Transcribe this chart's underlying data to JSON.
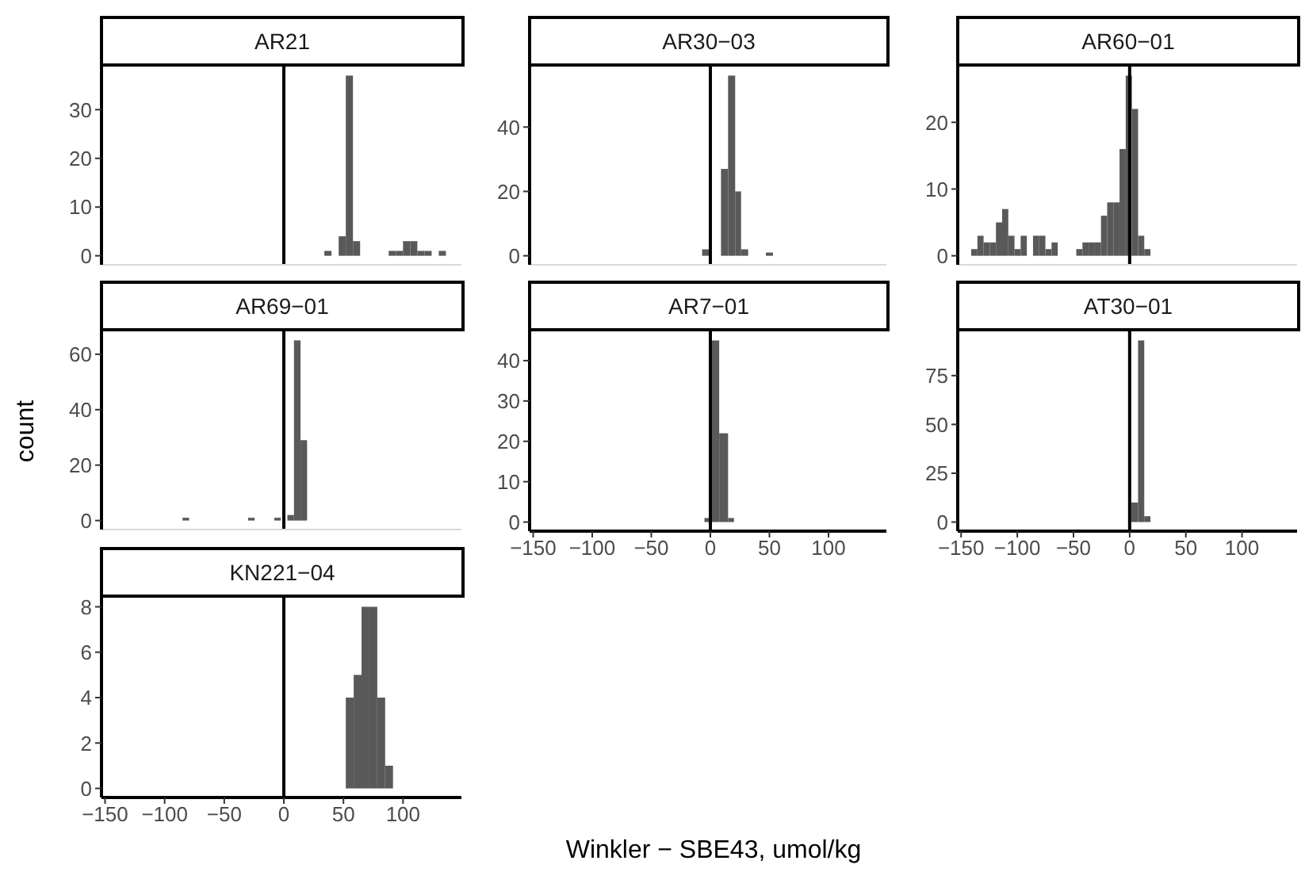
{
  "chart_data": [
    {
      "type": "histogram",
      "title": "AR21",
      "color": "#595959",
      "bins": [
        34,
        40,
        46,
        52,
        58,
        64,
        70,
        76,
        82,
        88,
        94,
        100,
        106,
        112,
        118,
        124,
        130,
        136
      ],
      "values": [
        1,
        0,
        4,
        37,
        3,
        0,
        0,
        0,
        0,
        1,
        1,
        3,
        3,
        1,
        1,
        0,
        1
      ],
      "xlim": [
        -153,
        149
      ],
      "ylim": [
        -1.85,
        38.85
      ],
      "yticks": [
        0,
        10,
        20,
        30
      ],
      "tick_labels": "y",
      "ref_lines": [
        {
          "axis": "x",
          "value": 0,
          "color": "#000000"
        }
      ]
    },
    {
      "type": "histogram",
      "title": "AR30−03",
      "color": "#595959",
      "bins": [
        -7,
        0,
        9,
        15,
        21,
        26,
        32,
        47,
        53
      ],
      "values": [
        2,
        0,
        27,
        56,
        20,
        2,
        0,
        1
      ],
      "xlim": [
        -153,
        149
      ],
      "ylim": [
        -2.8,
        58.8
      ],
      "yticks": [
        0,
        20,
        40
      ],
      "tick_labels": "y",
      "ref_lines": [
        {
          "axis": "x",
          "value": 0,
          "color": "#000000"
        }
      ]
    },
    {
      "type": "histogram",
      "title": "AR60−01",
      "color": "#595959",
      "bins": [
        -141,
        -135.5,
        -130,
        -124.5,
        -119,
        -113.5,
        -108,
        -102.5,
        -97,
        -91.5,
        -86,
        -80.5,
        -75,
        -69.5,
        -64,
        -58.5,
        -53,
        -47.5,
        -42,
        -36.5,
        -31,
        -25.5,
        -20,
        -14.5,
        -9,
        -3.5,
        2,
        7.5,
        13,
        18.5
      ],
      "values": [
        1,
        3,
        2,
        2,
        5,
        7,
        3,
        1,
        3,
        0,
        3,
        3,
        1,
        2,
        0,
        0,
        0,
        1,
        2,
        2,
        2,
        6,
        8,
        8,
        16,
        27,
        22,
        3,
        1
      ],
      "xlim": [
        -153,
        149
      ],
      "ylim": [
        -1.35,
        28.35
      ],
      "yticks": [
        0,
        10,
        20
      ],
      "tick_labels": "y",
      "ref_lines": [
        {
          "axis": "x",
          "value": 0,
          "color": "#000000"
        }
      ]
    },
    {
      "type": "histogram",
      "title": "AR69−01",
      "ylabel": "count",
      "color": "#595959",
      "bins": [
        -85,
        -79.5,
        -74,
        -68.5,
        -63,
        -57.5,
        -52,
        -46.5,
        -41,
        -35.5,
        -30,
        -24.5,
        -19,
        -13.5,
        -8,
        -2.5,
        3,
        8.5,
        14,
        19.5
      ],
      "values": [
        1,
        0,
        0,
        0,
        0,
        0,
        0,
        0,
        0,
        0,
        1,
        0,
        0,
        0,
        1,
        0,
        2,
        65,
        29
      ],
      "xlim": [
        -153,
        149
      ],
      "ylim": [
        -3.25,
        68.25
      ],
      "yticks": [
        0,
        20,
        40,
        60
      ],
      "tick_labels": "y",
      "ref_lines": [
        {
          "axis": "x",
          "value": 0,
          "color": "#000000"
        }
      ]
    },
    {
      "type": "histogram",
      "title": "AR7−01",
      "color": "#595959",
      "bins": [
        -5,
        0,
        7.5,
        15,
        20
      ],
      "values": [
        1,
        45,
        22,
        1
      ],
      "xlim": [
        -153,
        149
      ],
      "xticks": [
        {
          "value": -150,
          "label": "−150"
        },
        {
          "value": -100,
          "label": "−100"
        },
        {
          "value": -50,
          "label": "−50"
        },
        0,
        50,
        100
      ],
      "ylim": [
        -2.25,
        47.25
      ],
      "yticks": [
        0,
        10,
        20,
        30,
        40
      ],
      "ref_lines": [
        {
          "axis": "x",
          "value": 0,
          "color": "#000000"
        }
      ]
    },
    {
      "type": "histogram",
      "title": "AT30−01",
      "color": "#595959",
      "bins": [
        1.5,
        7.5,
        13,
        18.5
      ],
      "values": [
        10,
        93,
        3
      ],
      "xlim": [
        -153,
        149
      ],
      "xticks": [
        {
          "value": -150,
          "label": "−150"
        },
        {
          "value": -100,
          "label": "−100"
        },
        {
          "value": -50,
          "label": "−50"
        },
        0,
        50,
        100
      ],
      "ylim": [
        -4.65,
        97.65
      ],
      "yticks": [
        0,
        25,
        50,
        75
      ],
      "ref_lines": [
        {
          "axis": "x",
          "value": 0,
          "color": "#000000"
        }
      ]
    },
    {
      "type": "histogram",
      "title": "KN221−04",
      "xlabel": "Winkler − SBE43, umol/kg",
      "color": "#595959",
      "bins": [
        52,
        58.6,
        65.2,
        71.8,
        78.4,
        85,
        91.6
      ],
      "values": [
        4,
        5,
        8,
        8,
        4,
        1
      ],
      "xlim": [
        -153,
        149
      ],
      "xticks": [
        {
          "value": -150,
          "label": "−150"
        },
        {
          "value": -100,
          "label": "−100"
        },
        {
          "value": -50,
          "label": "−50"
        },
        0,
        50,
        100
      ],
      "ylim": [
        -0.4,
        8.4
      ],
      "yticks": [
        0,
        2,
        4,
        6,
        8
      ],
      "ref_lines": [
        {
          "axis": "x",
          "value": 0,
          "color": "#000000"
        }
      ]
    }
  ]
}
